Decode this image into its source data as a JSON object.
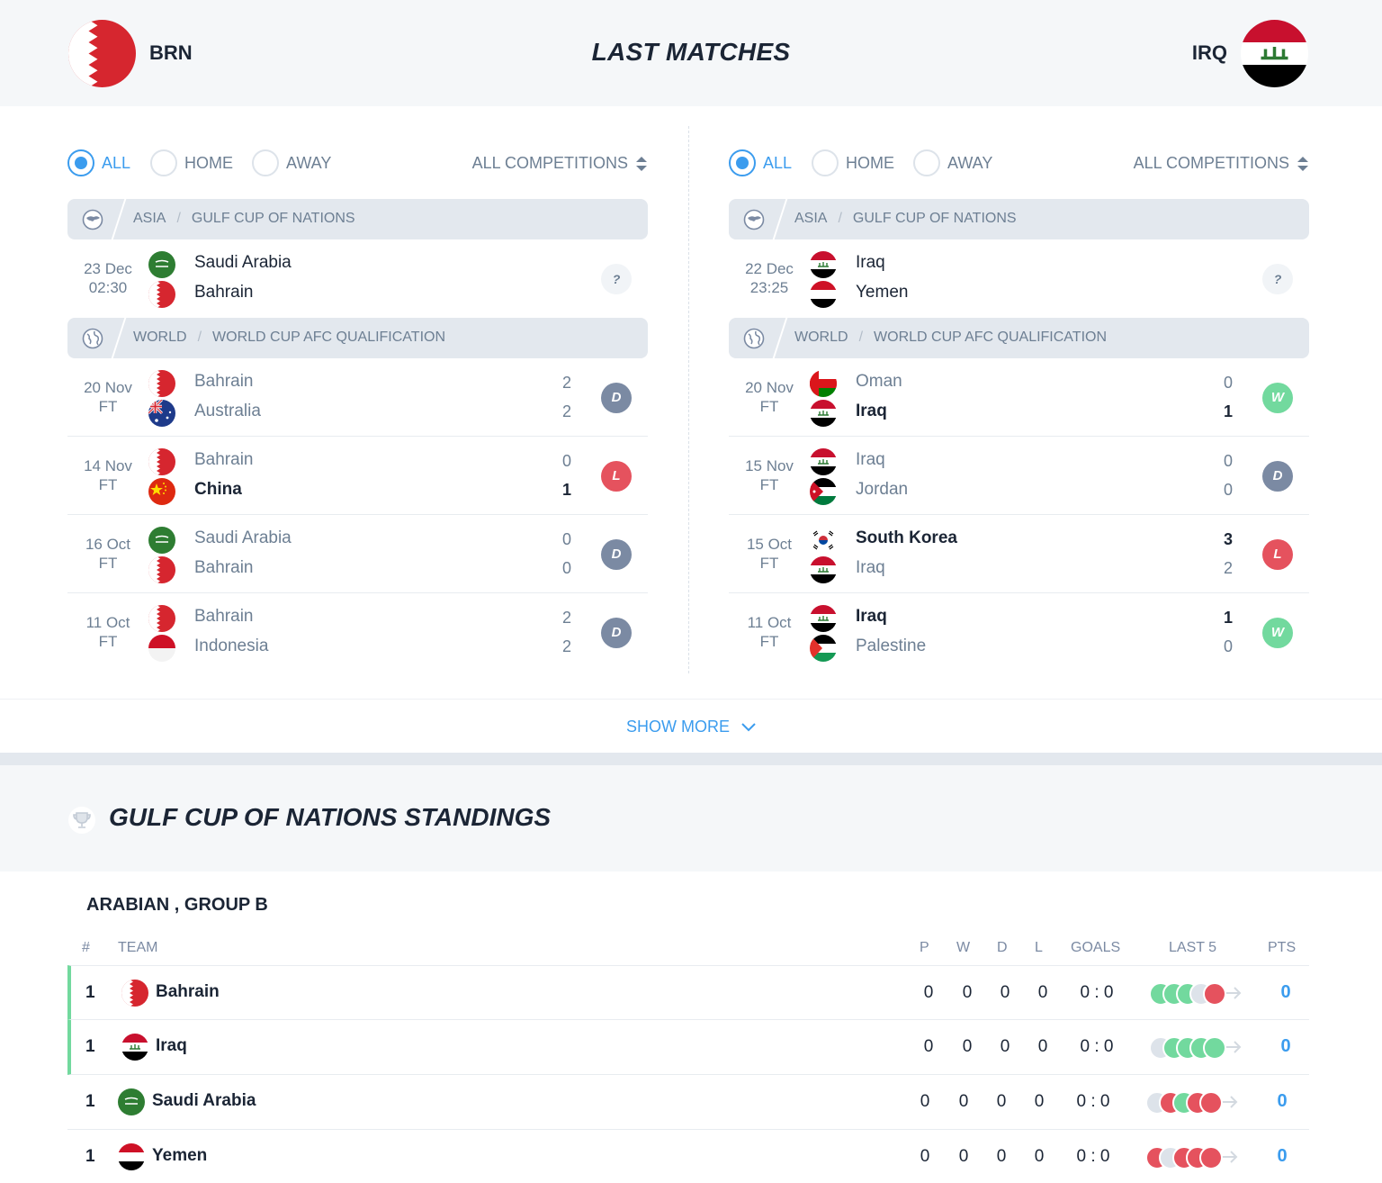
{
  "header": {
    "title": "LAST MATCHES",
    "home_code": "BRN",
    "away_code": "IRQ"
  },
  "filters": {
    "all": "ALL",
    "home": "HOME",
    "away": "AWAY",
    "competitions": "ALL COMPETITIONS"
  },
  "left": {
    "league1": {
      "region": "ASIA",
      "name": "GULF CUP OF NATIONS"
    },
    "upcoming": {
      "date": "23 Dec",
      "time": "02:30",
      "home": "Saudi Arabia",
      "away": "Bahrain",
      "result": "?"
    },
    "league2": {
      "region": "WORLD",
      "name": "WORLD CUP AFC QUALIFICATION"
    },
    "matches": [
      {
        "date": "20 Nov",
        "status": "FT",
        "home": "Bahrain",
        "away": "Australia",
        "home_score": "2",
        "away_score": "2",
        "result": "D"
      },
      {
        "date": "14 Nov",
        "status": "FT",
        "home": "Bahrain",
        "away": "China",
        "home_score": "0",
        "away_score": "1",
        "result": "L"
      },
      {
        "date": "16 Oct",
        "status": "FT",
        "home": "Saudi Arabia",
        "away": "Bahrain",
        "home_score": "0",
        "away_score": "0",
        "result": "D"
      },
      {
        "date": "11 Oct",
        "status": "FT",
        "home": "Bahrain",
        "away": "Indonesia",
        "home_score": "2",
        "away_score": "2",
        "result": "D"
      }
    ]
  },
  "right": {
    "league1": {
      "region": "ASIA",
      "name": "GULF CUP OF NATIONS"
    },
    "upcoming": {
      "date": "22 Dec",
      "time": "23:25",
      "home": "Iraq",
      "away": "Yemen",
      "result": "?"
    },
    "league2": {
      "region": "WORLD",
      "name": "WORLD CUP AFC QUALIFICATION"
    },
    "matches": [
      {
        "date": "20 Nov",
        "status": "FT",
        "home": "Oman",
        "away": "Iraq",
        "home_score": "0",
        "away_score": "1",
        "result": "W"
      },
      {
        "date": "15 Nov",
        "status": "FT",
        "home": "Iraq",
        "away": "Jordan",
        "home_score": "0",
        "away_score": "0",
        "result": "D"
      },
      {
        "date": "15 Oct",
        "status": "FT",
        "home": "South Korea",
        "away": "Iraq",
        "home_score": "3",
        "away_score": "2",
        "result": "L"
      },
      {
        "date": "11 Oct",
        "status": "FT",
        "home": "Iraq",
        "away": "Palestine",
        "home_score": "1",
        "away_score": "0",
        "result": "W"
      }
    ]
  },
  "show_more": "SHOW MORE",
  "standings": {
    "title": "GULF CUP OF NATIONS STANDINGS",
    "group": "ARABIAN , GROUP B",
    "columns": {
      "rank": "#",
      "team": "TEAM",
      "p": "P",
      "w": "W",
      "d": "D",
      "l": "L",
      "goals": "GOALS",
      "last5": "LAST 5",
      "pts": "PTS"
    },
    "rows": [
      {
        "rank": "1",
        "team": "Bahrain",
        "p": "0",
        "w": "0",
        "d": "0",
        "l": "0",
        "goals": "0 : 0",
        "pts": "0",
        "last5": [
          "W",
          "W",
          "W",
          "D",
          "L"
        ]
      },
      {
        "rank": "1",
        "team": "Iraq",
        "p": "0",
        "w": "0",
        "d": "0",
        "l": "0",
        "goals": "0 : 0",
        "pts": "0",
        "last5": [
          "D",
          "W",
          "W",
          "W",
          "W"
        ]
      },
      {
        "rank": "1",
        "team": "Saudi Arabia",
        "p": "0",
        "w": "0",
        "d": "0",
        "l": "0",
        "goals": "0 : 0",
        "pts": "0",
        "last5": [
          "D",
          "L",
          "W",
          "L",
          "L"
        ]
      },
      {
        "rank": "1",
        "team": "Yemen",
        "p": "0",
        "w": "0",
        "d": "0",
        "l": "0",
        "goals": "0 : 0",
        "pts": "0",
        "last5": [
          "L",
          "D",
          "L",
          "L",
          "L"
        ]
      }
    ]
  },
  "colors": {
    "accent": "#3b9cee",
    "win": "#72d99e",
    "loss": "#e5525e",
    "draw": "#7b8aa3",
    "qualify": "#72d99e"
  }
}
